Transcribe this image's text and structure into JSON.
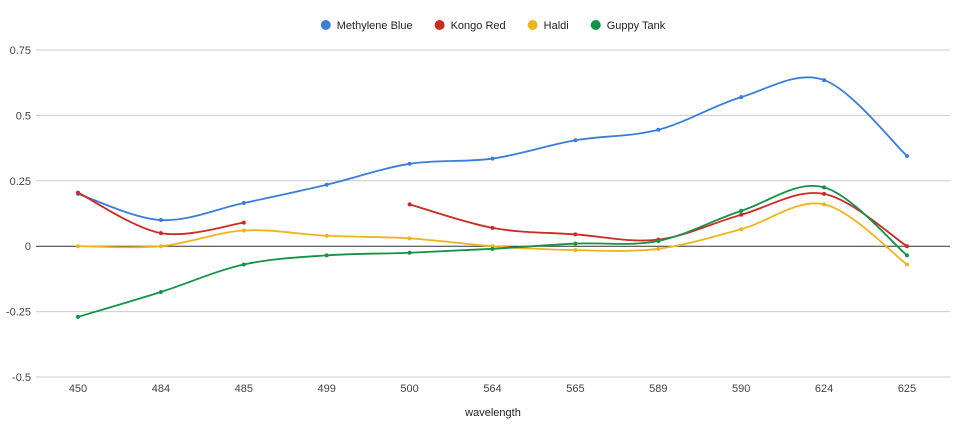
{
  "chart_data": {
    "type": "line",
    "title": "",
    "xlabel": "wavelength",
    "ylabel": "",
    "categories": [
      "450",
      "484",
      "485",
      "499",
      "500",
      "564",
      "565",
      "589",
      "590",
      "624",
      "625"
    ],
    "ylim": [
      -0.5,
      0.75
    ],
    "yticks": [
      -0.5,
      -0.25,
      0,
      0.25,
      0.5,
      0.75
    ],
    "ytick_labels": [
      "-0.5",
      "-0.25",
      "0",
      "0.25",
      "0.5",
      "0.75"
    ],
    "grid": true,
    "legend_position": "top-center",
    "curve": "smooth",
    "series": [
      {
        "name": "Methylene Blue",
        "color": "#3b7ddd",
        "values": [
          0.2,
          0.1,
          0.165,
          0.235,
          0.315,
          0.335,
          0.405,
          0.445,
          0.57,
          0.635,
          0.345
        ]
      },
      {
        "name": "Kongo Red",
        "color": "#cc2a24",
        "values": [
          0.205,
          0.05,
          0.09,
          null,
          0.16,
          0.07,
          0.045,
          0.025,
          0.12,
          0.2,
          0.0
        ]
      },
      {
        "name": "Haldi",
        "color": "#f0b31c",
        "values": [
          0.0,
          0.0,
          0.06,
          0.04,
          0.03,
          0.0,
          -0.015,
          -0.01,
          0.065,
          0.16,
          -0.07
        ]
      },
      {
        "name": "Guppy Tank",
        "color": "#149245",
        "values": [
          -0.27,
          -0.175,
          -0.07,
          -0.035,
          -0.025,
          -0.01,
          0.01,
          0.02,
          0.135,
          0.225,
          -0.035
        ]
      }
    ]
  }
}
